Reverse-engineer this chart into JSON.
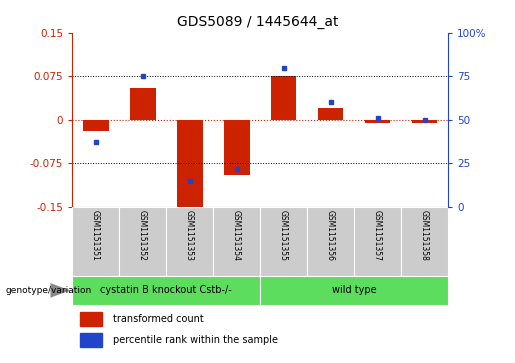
{
  "title": "GDS5089 / 1445644_at",
  "samples": [
    "GSM1151351",
    "GSM1151352",
    "GSM1151353",
    "GSM1151354",
    "GSM1151355",
    "GSM1151356",
    "GSM1151357",
    "GSM1151358"
  ],
  "transformed_count": [
    -0.02,
    0.055,
    -0.155,
    -0.095,
    0.075,
    0.02,
    -0.005,
    -0.005
  ],
  "percentile_rank": [
    37,
    75,
    15,
    22,
    80,
    60,
    51,
    50
  ],
  "ylim_left": [
    -0.15,
    0.15
  ],
  "ylim_right": [
    0,
    100
  ],
  "yticks_left": [
    -0.15,
    -0.075,
    0,
    0.075,
    0.15
  ],
  "yticks_right": [
    0,
    25,
    50,
    75,
    100
  ],
  "ytick_labels_left": [
    "-0.15",
    "-0.075",
    "0",
    "0.075",
    "0.15"
  ],
  "ytick_labels_right": [
    "0",
    "25",
    "50",
    "75",
    "100%"
  ],
  "group1_label": "cystatin B knockout Cstb-/-",
  "group2_label": "wild type",
  "group_label": "genotype/variation",
  "group1_color": "#5ddd5d",
  "group2_color": "#5ddd5d",
  "bar_color": "#cc2200",
  "dot_color": "#2244cc",
  "legend_bar_label": "transformed count",
  "legend_dot_label": "percentile rank within the sample",
  "bar_width": 0.55,
  "sample_bg_color": "#cccccc",
  "zero_line_color": "#cc2200",
  "dotted_line_color": "#000000"
}
